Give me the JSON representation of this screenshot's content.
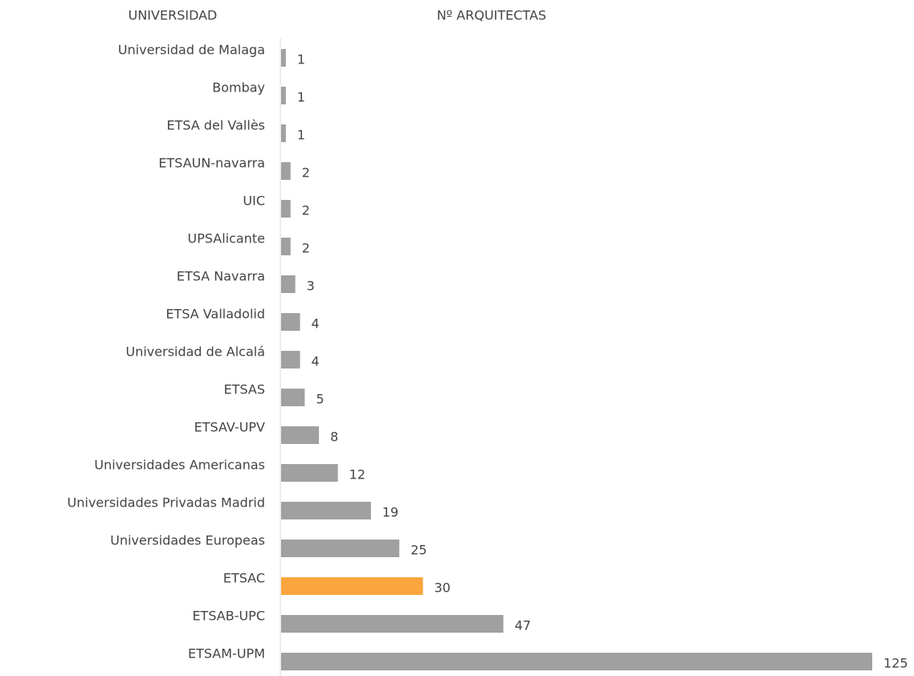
{
  "chart_data": {
    "type": "barh",
    "ylabel": "UNIVERSIDAD",
    "xlabel": "Nº ARQUITECTAS",
    "categories": [
      "Universidad de Malaga",
      "Bombay",
      "ETSA del Vallès",
      "ETSAUN-navarra",
      "UIC",
      "UPSAlicante",
      "ETSA Navarra",
      "ETSA Valladolid ",
      "Universidad de Alcalá",
      "ETSAS",
      "ETSAV-UPV",
      "Universidades Americanas",
      "Universidades Privadas Madrid",
      "Universidades Europeas",
      "ETSAC",
      "ETSAB-UPC",
      "ETSAM-UPM"
    ],
    "values": [
      1,
      1,
      1,
      2,
      2,
      2,
      3,
      4,
      4,
      5,
      8,
      12,
      19,
      25,
      30,
      47,
      125
    ],
    "colors": [
      "#a0a0a0",
      "#a0a0a0",
      "#a0a0a0",
      "#a0a0a0",
      "#a0a0a0",
      "#a0a0a0",
      "#a0a0a0",
      "#a0a0a0",
      "#a0a0a0",
      "#a0a0a0",
      "#a0a0a0",
      "#a0a0a0",
      "#a0a0a0",
      "#a0a0a0",
      "#fba53f",
      "#a0a0a0",
      "#a0a0a0"
    ],
    "xlim": [
      0,
      125
    ]
  }
}
